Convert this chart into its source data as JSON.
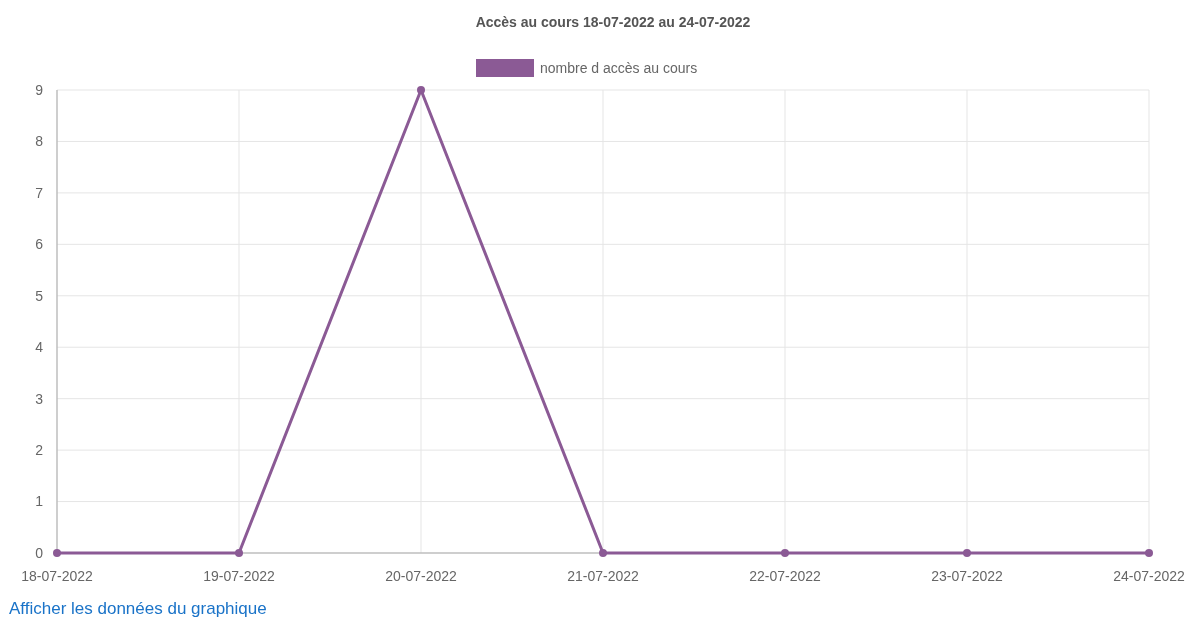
{
  "chart_data": {
    "type": "line",
    "title": "Accès au cours 18-07-2022  au 24-07-2022",
    "categories": [
      "18-07-2022",
      "19-07-2022",
      "20-07-2022",
      "21-07-2022",
      "22-07-2022",
      "23-07-2022",
      "24-07-2022"
    ],
    "series": [
      {
        "name": "nombre d accès au cours",
        "color": "#8b5a95",
        "values": [
          0,
          0,
          9,
          0,
          0,
          0,
          0
        ]
      }
    ],
    "ylim": [
      0,
      9
    ],
    "yticks": [
      0,
      1,
      2,
      3,
      4,
      5,
      6,
      7,
      8,
      9
    ],
    "grid": true,
    "legend": "top",
    "marker": "circle",
    "line_style": "solid",
    "annotations": [
      "Afficher les données du graphique"
    ]
  }
}
